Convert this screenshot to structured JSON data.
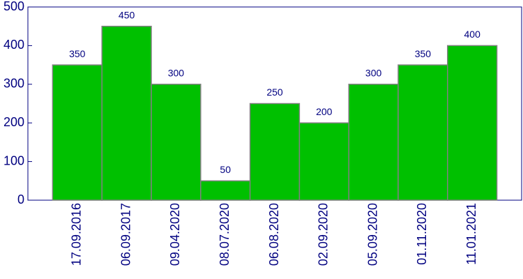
{
  "chart_data": {
    "type": "bar",
    "categories": [
      "17.09.2016",
      "06.09.2017",
      "09.04.2020",
      "08.07.2020",
      "06.08.2020",
      "02.09.2020",
      "05.09.2020",
      "01.11.2020",
      "11.01.2021"
    ],
    "values": [
      350,
      450,
      300,
      50,
      250,
      200,
      300,
      350,
      400
    ],
    "color": "#00c000",
    "ylim": [
      0,
      500
    ],
    "yticks": [
      0,
      100,
      200,
      300,
      400,
      500
    ],
    "data_labels": true
  }
}
